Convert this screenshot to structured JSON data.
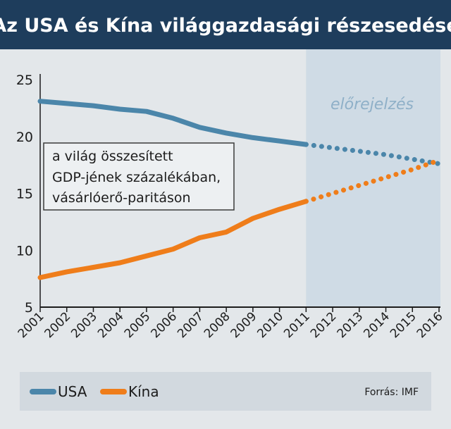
{
  "title": "Az USA és Kína világgazdasági részesedése",
  "annotation_lines": [
    "a világ összesített",
    "GDP-jének százalékában,",
    "vásárlóerő-paritáson"
  ],
  "forecast_label": "előrejelzés",
  "source": "Forrás: IMF",
  "colors": {
    "header": "#1e3d5c",
    "usa": "#4b86aa",
    "kina": "#ef7d1a",
    "forecast_band": "#cfdbe5",
    "legend_bg": "#d2d9df"
  },
  "chart_data": {
    "type": "line",
    "title": "Az USA és Kína világgazdasági részesedése",
    "ylabel": "",
    "xlabel": "",
    "ylim": [
      5,
      25
    ],
    "yticks": [
      5,
      10,
      15,
      20,
      25
    ],
    "x": [
      "2001",
      "2002",
      "2003",
      "2004",
      "2005",
      "2006",
      "2007",
      "2008",
      "2009",
      "2010",
      "2011",
      "2012",
      "2013",
      "2014",
      "2015",
      "2016"
    ],
    "forecast_from": "2011",
    "grid": false,
    "legend_position": "bottom",
    "series": [
      {
        "name": "USA",
        "color": "#4b86aa",
        "values": [
          23.1,
          22.9,
          22.7,
          22.4,
          22.2,
          21.6,
          20.8,
          20.3,
          19.9,
          19.6,
          19.3,
          19.0,
          18.7,
          18.4,
          18.0,
          17.6
        ]
      },
      {
        "name": "Kína",
        "color": "#ef7d1a",
        "values": [
          7.6,
          8.1,
          8.5,
          8.9,
          9.5,
          10.1,
          11.1,
          11.6,
          12.8,
          13.6,
          14.3,
          15.0,
          15.7,
          16.4,
          17.1,
          17.9
        ]
      }
    ]
  }
}
